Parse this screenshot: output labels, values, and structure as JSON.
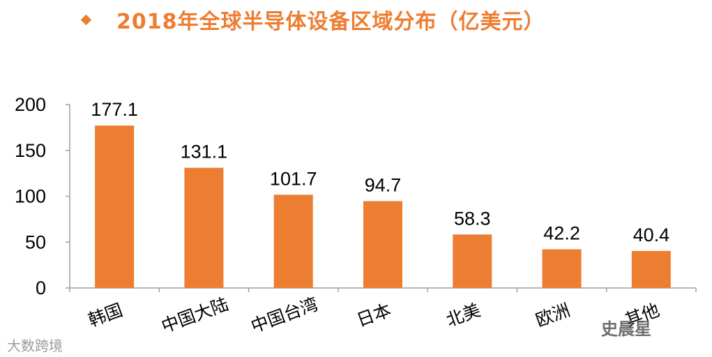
{
  "header": {
    "bullet_icon": "diamond-bullet-icon",
    "title": "2018年全球半导体设备区域分布（亿美元）"
  },
  "colors": {
    "accent": "#ED7D31",
    "bar": "#ED7D31",
    "axis": "#9e9e9e"
  },
  "watermarks": {
    "left_text": "大数跨境",
    "right_text": "史晨星"
  },
  "chart_data": {
    "type": "bar",
    "title": "2018年全球半导体设备区域分布（亿美元）",
    "categories": [
      "韩国",
      "中国大陆",
      "中国台湾",
      "日本",
      "北美",
      "欧洲",
      "其他"
    ],
    "values": [
      177.1,
      131.1,
      101.7,
      94.7,
      58.3,
      42.2,
      40.4
    ],
    "value_labels": [
      "177.1",
      "131.1",
      "101.7",
      "94.7",
      "58.3",
      "42.2",
      "40.4"
    ],
    "yticks": [
      "0",
      "50",
      "100",
      "150",
      "200"
    ],
    "ylim": [
      0,
      200
    ],
    "xlabel": "",
    "ylabel": "",
    "grid": false,
    "legend": "none"
  }
}
